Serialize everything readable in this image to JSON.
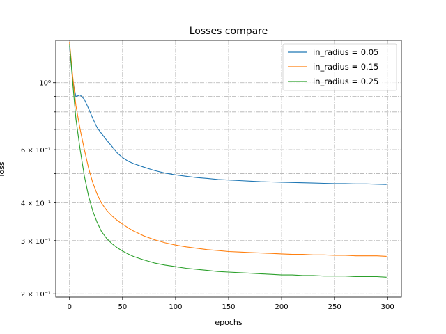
{
  "chart_data": {
    "type": "line",
    "title": "Losses compare",
    "xlabel": "epochs",
    "ylabel": "loss",
    "xlim": [
      -13,
      313
    ],
    "ylim": [
      0.195,
      1.38
    ],
    "yscale": "log",
    "grid": true,
    "legend_position": "top-right",
    "x_ticks": [
      0,
      50,
      100,
      150,
      200,
      250,
      300
    ],
    "y_major_ticks": [
      {
        "value": 0.2,
        "label": "2 × 10⁻¹"
      },
      {
        "value": 1.0,
        "label": "10⁰"
      }
    ],
    "y_minor_ticks": [
      {
        "value": 0.3,
        "label": "3 × 10⁻¹"
      },
      {
        "value": 0.4,
        "label": "4 × 10⁻¹"
      },
      {
        "value": 0.5,
        "label": ""
      },
      {
        "value": 0.6,
        "label": "6 × 10⁻¹"
      },
      {
        "value": 0.7,
        "label": ""
      },
      {
        "value": 0.8,
        "label": ""
      },
      {
        "value": 0.9,
        "label": ""
      }
    ],
    "series": [
      {
        "name": "in_radius = 0.05",
        "color": "#1f77b4",
        "x": [
          0,
          3,
          6,
          10,
          14,
          18,
          22,
          26,
          30,
          35,
          40,
          45,
          50,
          55,
          60,
          70,
          80,
          90,
          100,
          110,
          120,
          130,
          140,
          150,
          160,
          170,
          180,
          190,
          200,
          210,
          220,
          230,
          240,
          250,
          260,
          270,
          280,
          290,
          299
        ],
        "y": [
          1.32,
          1.02,
          0.9,
          0.91,
          0.88,
          0.82,
          0.76,
          0.71,
          0.68,
          0.645,
          0.615,
          0.585,
          0.565,
          0.55,
          0.54,
          0.525,
          0.512,
          0.502,
          0.495,
          0.49,
          0.485,
          0.482,
          0.478,
          0.476,
          0.474,
          0.472,
          0.47,
          0.469,
          0.468,
          0.467,
          0.466,
          0.465,
          0.464,
          0.463,
          0.463,
          0.462,
          0.462,
          0.461,
          0.46
        ]
      },
      {
        "name": "in_radius = 0.15",
        "color": "#ff7f0e",
        "x": [
          0,
          3,
          6,
          10,
          14,
          18,
          22,
          26,
          30,
          35,
          40,
          45,
          50,
          55,
          60,
          70,
          80,
          90,
          100,
          110,
          120,
          130,
          140,
          150,
          160,
          170,
          180,
          190,
          200,
          210,
          220,
          230,
          240,
          250,
          260,
          270,
          280,
          290,
          299
        ],
        "y": [
          1.36,
          1.05,
          0.84,
          0.7,
          0.6,
          0.52,
          0.465,
          0.428,
          0.4,
          0.378,
          0.362,
          0.35,
          0.34,
          0.331,
          0.323,
          0.311,
          0.302,
          0.295,
          0.29,
          0.286,
          0.283,
          0.28,
          0.278,
          0.276,
          0.275,
          0.274,
          0.273,
          0.272,
          0.271,
          0.27,
          0.27,
          0.269,
          0.269,
          0.268,
          0.268,
          0.267,
          0.267,
          0.267,
          0.266
        ]
      },
      {
        "name": "in_radius = 0.25",
        "color": "#2ca02c",
        "x": [
          0,
          3,
          6,
          10,
          14,
          18,
          22,
          26,
          30,
          35,
          40,
          45,
          50,
          55,
          60,
          70,
          80,
          90,
          100,
          110,
          120,
          130,
          140,
          150,
          160,
          170,
          180,
          190,
          200,
          210,
          220,
          230,
          240,
          250,
          260,
          270,
          280,
          290,
          299
        ],
        "y": [
          1.34,
          1.0,
          0.76,
          0.6,
          0.49,
          0.42,
          0.375,
          0.345,
          0.322,
          0.305,
          0.293,
          0.284,
          0.277,
          0.271,
          0.266,
          0.259,
          0.253,
          0.249,
          0.246,
          0.243,
          0.241,
          0.239,
          0.237,
          0.236,
          0.235,
          0.234,
          0.233,
          0.232,
          0.231,
          0.231,
          0.23,
          0.23,
          0.229,
          0.229,
          0.229,
          0.228,
          0.228,
          0.228,
          0.227
        ]
      }
    ]
  }
}
